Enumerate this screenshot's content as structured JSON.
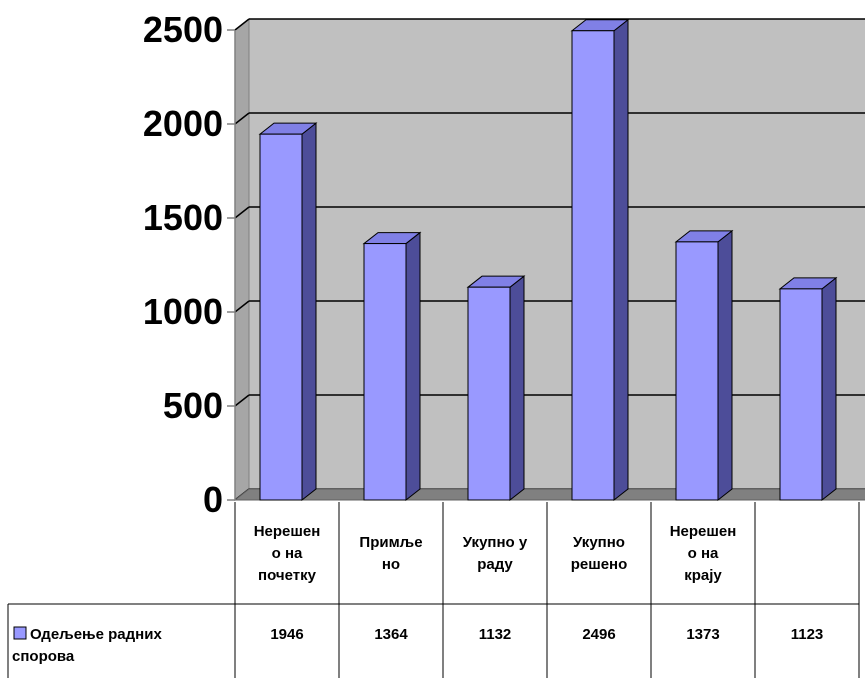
{
  "chart_data": {
    "type": "bar",
    "categories": [
      [
        "Нерешен",
        "о на",
        "почетку"
      ],
      [
        "Примље",
        "но"
      ],
      [
        "Укупно у",
        "раду"
      ],
      [
        "Укупно",
        "решено"
      ],
      [
        "Нерешен",
        "о на",
        "крају"
      ],
      []
    ],
    "series": [
      {
        "name": [
          "Одељење радних",
          "спорова"
        ],
        "values": [
          1946,
          1364,
          1132,
          2496,
          1373,
          1123
        ],
        "value_labels": [
          "1946",
          "1364",
          "1132",
          "2496",
          "1373",
          "1123"
        ],
        "color": "#9999ff"
      }
    ],
    "yticks": [
      "0",
      "500",
      "1000",
      "1500",
      "2000",
      "2500"
    ],
    "ylim": [
      0,
      2500
    ],
    "grid": true,
    "legend": "data-table-left",
    "wall_color": "#c0c0c0",
    "title": "",
    "xlabel": "",
    "ylabel": ""
  }
}
